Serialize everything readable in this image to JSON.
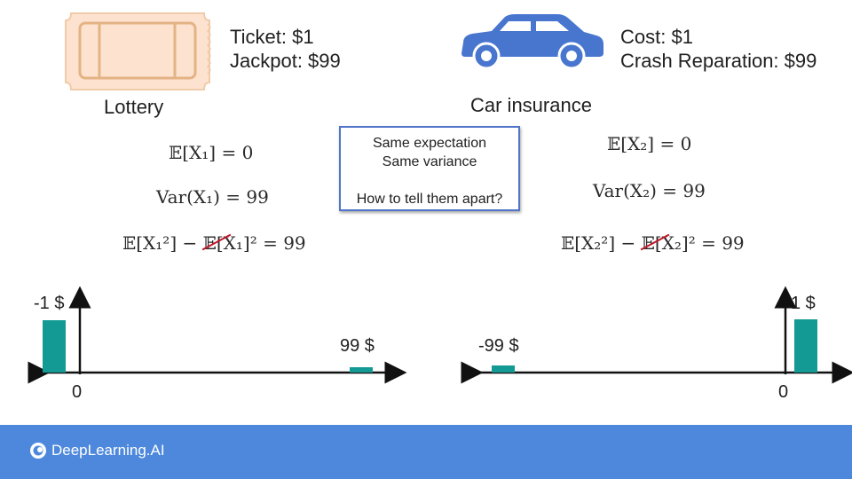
{
  "lottery": {
    "icon": "ticket-icon",
    "line1": "Ticket: $1",
    "line2": "Jackpot: $99",
    "caption": "Lottery",
    "eq1": "𝔼[X₁] = 0",
    "eq2": "Var(X₁) = 99",
    "eq3": "𝔼[X₁²] − 𝔼[X₁]² = 99"
  },
  "insurance": {
    "icon": "car-icon",
    "line1": "Cost: $1",
    "line2": "Crash Reparation: $99",
    "caption": "Car insurance",
    "eq1": "𝔼[X₂] = 0",
    "eq2": "Var(X₂) = 99",
    "eq3": "𝔼[X₂²] − 𝔼[X₂]² = 99"
  },
  "callout": {
    "line1": "Same expectation",
    "line2": "Same variance",
    "line3": "How to tell them apart?"
  },
  "left_plot": {
    "bars": [
      {
        "label": "-1 $",
        "value": -1
      },
      {
        "label": "99 $",
        "value": 99
      }
    ],
    "zero_label": "0"
  },
  "right_plot": {
    "bars": [
      {
        "label": "-99 $",
        "value": -99
      },
      {
        "label": "1 $",
        "value": 1
      }
    ],
    "zero_label": "0"
  },
  "footer": {
    "brand": "DeepLearning.AI",
    "logo_icon": "deeplearning-logo-icon"
  },
  "colors": {
    "bar": "#139a94",
    "footer": "#4d88dc",
    "callout_border": "#4f74c8",
    "ticket_fill": "#fde3cf",
    "ticket_stroke": "#e7b98e",
    "car_body": "#4876cf",
    "strike": "#c0182a"
  }
}
